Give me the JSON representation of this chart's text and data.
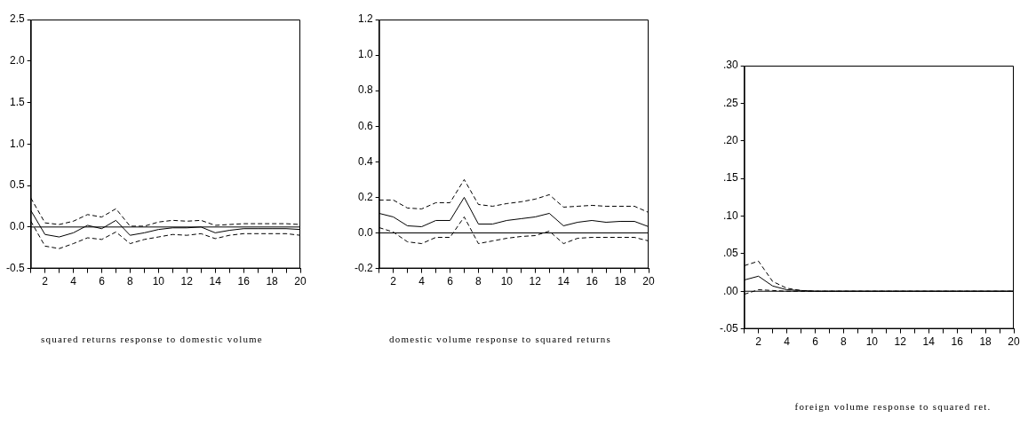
{
  "chart_data": [
    {
      "type": "line",
      "xlabel": "squared returns response to domestic volume",
      "x": [
        1,
        2,
        3,
        4,
        5,
        6,
        7,
        8,
        9,
        10,
        11,
        12,
        13,
        14,
        15,
        16,
        17,
        18,
        19,
        20
      ],
      "xlim": [
        1,
        20
      ],
      "xticks": [
        {
          "value": 1,
          "label": null
        },
        2,
        {
          "value": 3,
          "label": null
        },
        4,
        {
          "value": 5,
          "label": null
        },
        6,
        {
          "value": 7,
          "label": null
        },
        8,
        {
          "value": 9,
          "label": null
        },
        10,
        {
          "value": 11,
          "label": null
        },
        12,
        {
          "value": 13,
          "label": null
        },
        14,
        {
          "value": 15,
          "label": null
        },
        16,
        {
          "value": 17,
          "label": null
        },
        18,
        {
          "value": 19,
          "label": null
        },
        20
      ],
      "ylim": [
        -0.5,
        2.5
      ],
      "yticks": [
        {
          "value": -0.5,
          "label": "-0.5"
        },
        {
          "value": 0,
          "label": "0.0"
        },
        {
          "value": 0.5,
          "label": "0.5"
        },
        {
          "value": 1,
          "label": "1.0"
        },
        {
          "value": 1.5,
          "label": "1.5"
        },
        {
          "value": 2,
          "label": "2.0"
        },
        {
          "value": 2.5,
          "label": "2.5"
        }
      ],
      "ref_lines": [
        {
          "axis": "y",
          "value": 0,
          "color": "#000000"
        }
      ],
      "series": [
        {
          "color": "#000000",
          "line_style": "solid",
          "values": [
            0.2,
            -0.09,
            -0.12,
            -0.07,
            0.02,
            -0.02,
            0.08,
            -0.1,
            -0.07,
            -0.03,
            -0.01,
            -0.01,
            0.0,
            -0.07,
            -0.04,
            -0.02,
            -0.02,
            -0.02,
            -0.02,
            -0.03
          ]
        },
        {
          "color": "#000000",
          "line_style": "dashed",
          "values": [
            0.35,
            0.05,
            0.03,
            0.07,
            0.15,
            0.12,
            0.22,
            0.01,
            0.01,
            0.06,
            0.08,
            0.07,
            0.08,
            0.02,
            0.03,
            0.04,
            0.04,
            0.04,
            0.04,
            0.03
          ]
        },
        {
          "color": "#000000",
          "line_style": "dashed",
          "values": [
            0.07,
            -0.23,
            -0.26,
            -0.2,
            -0.13,
            -0.15,
            -0.06,
            -0.2,
            -0.15,
            -0.12,
            -0.09,
            -0.1,
            -0.08,
            -0.14,
            -0.1,
            -0.08,
            -0.08,
            -0.08,
            -0.08,
            -0.1
          ]
        }
      ]
    },
    {
      "type": "line",
      "xlabel": "domestic volume response to squared returns",
      "x": [
        1,
        2,
        3,
        4,
        5,
        6,
        7,
        8,
        9,
        10,
        11,
        12,
        13,
        14,
        15,
        16,
        17,
        18,
        19,
        20
      ],
      "xlim": [
        1,
        20
      ],
      "xticks": [
        {
          "value": 1,
          "label": null
        },
        2,
        {
          "value": 3,
          "label": null
        },
        4,
        {
          "value": 5,
          "label": null
        },
        6,
        {
          "value": 7,
          "label": null
        },
        8,
        {
          "value": 9,
          "label": null
        },
        10,
        {
          "value": 11,
          "label": null
        },
        12,
        {
          "value": 13,
          "label": null
        },
        14,
        {
          "value": 15,
          "label": null
        },
        16,
        {
          "value": 17,
          "label": null
        },
        18,
        {
          "value": 19,
          "label": null
        },
        20
      ],
      "ylim": [
        -0.2,
        1.2
      ],
      "yticks": [
        {
          "value": -0.2,
          "label": "-0.2"
        },
        {
          "value": 0,
          "label": "0.0"
        },
        {
          "value": 0.2,
          "label": "0.2"
        },
        {
          "value": 0.4,
          "label": "0.4"
        },
        {
          "value": 0.6,
          "label": "0.6"
        },
        {
          "value": 0.8,
          "label": "0.8"
        },
        {
          "value": 1,
          "label": "1.0"
        },
        {
          "value": 1.2,
          "label": "1.2"
        }
      ],
      "ref_lines": [
        {
          "axis": "y",
          "value": 0,
          "color": "#000000"
        }
      ],
      "series": [
        {
          "color": "#000000",
          "line_style": "solid",
          "values": [
            0.11,
            0.09,
            0.04,
            0.035,
            0.07,
            0.07,
            0.2,
            0.05,
            0.05,
            0.07,
            0.08,
            0.09,
            0.11,
            0.04,
            0.06,
            0.07,
            0.06,
            0.065,
            0.065,
            0.035
          ]
        },
        {
          "color": "#000000",
          "line_style": "dashed",
          "values": [
            0.185,
            0.185,
            0.14,
            0.135,
            0.17,
            0.17,
            0.3,
            0.16,
            0.15,
            0.165,
            0.175,
            0.19,
            0.215,
            0.145,
            0.15,
            0.155,
            0.15,
            0.15,
            0.15,
            0.115
          ]
        },
        {
          "color": "#000000",
          "line_style": "dashed",
          "values": [
            0.03,
            0.005,
            -0.05,
            -0.06,
            -0.025,
            -0.025,
            0.09,
            -0.06,
            -0.045,
            -0.03,
            -0.02,
            -0.015,
            0.01,
            -0.06,
            -0.03,
            -0.025,
            -0.025,
            -0.025,
            -0.025,
            -0.045
          ]
        }
      ]
    },
    {
      "type": "line",
      "xlabel": "foreign volume response to squared ret.",
      "x": [
        1,
        2,
        3,
        4,
        5,
        6,
        7,
        8,
        9,
        10,
        11,
        12,
        13,
        14,
        15,
        16,
        17,
        18,
        19,
        20
      ],
      "xlim": [
        1,
        20
      ],
      "xticks": [
        {
          "value": 1,
          "label": null
        },
        2,
        {
          "value": 3,
          "label": null
        },
        4,
        {
          "value": 5,
          "label": null
        },
        6,
        {
          "value": 7,
          "label": null
        },
        8,
        {
          "value": 9,
          "label": null
        },
        10,
        {
          "value": 11,
          "label": null
        },
        12,
        {
          "value": 13,
          "label": null
        },
        14,
        {
          "value": 15,
          "label": null
        },
        16,
        {
          "value": 17,
          "label": null
        },
        18,
        {
          "value": 19,
          "label": null
        },
        20
      ],
      "ylim": [
        -0.05,
        0.3
      ],
      "yticks": [
        {
          "value": -0.05,
          "label": "-.05"
        },
        {
          "value": 0,
          "label": ".00"
        },
        {
          "value": 0.05,
          "label": ".05"
        },
        {
          "value": 0.1,
          "label": ".10"
        },
        {
          "value": 0.15,
          "label": ".15"
        },
        {
          "value": 0.2,
          "label": ".20"
        },
        {
          "value": 0.25,
          "label": ".25"
        },
        {
          "value": 0.3,
          "label": ".30"
        }
      ],
      "ref_lines": [
        {
          "axis": "y",
          "value": 0,
          "color": "#000000"
        }
      ],
      "series": [
        {
          "color": "#000000",
          "line_style": "solid",
          "values": [
            0.015,
            0.02,
            0.007,
            0.002,
            0.001,
            0,
            0,
            0,
            0,
            0,
            0,
            0,
            0,
            0,
            0,
            0,
            0,
            0,
            0,
            0
          ]
        },
        {
          "color": "#000000",
          "line_style": "dashed",
          "values": [
            0.034,
            0.04,
            0.013,
            0.004,
            0.001,
            0,
            0,
            0,
            0,
            0,
            0,
            0,
            0,
            0,
            0,
            0,
            0,
            0,
            0,
            0
          ]
        },
        {
          "color": "#000000",
          "line_style": "dashed",
          "values": [
            -0.004,
            0.002,
            0.001,
            0,
            0,
            0,
            0,
            0,
            0,
            0,
            0,
            0,
            0,
            0,
            0,
            0,
            0,
            0,
            0,
            0
          ]
        }
      ]
    }
  ]
}
